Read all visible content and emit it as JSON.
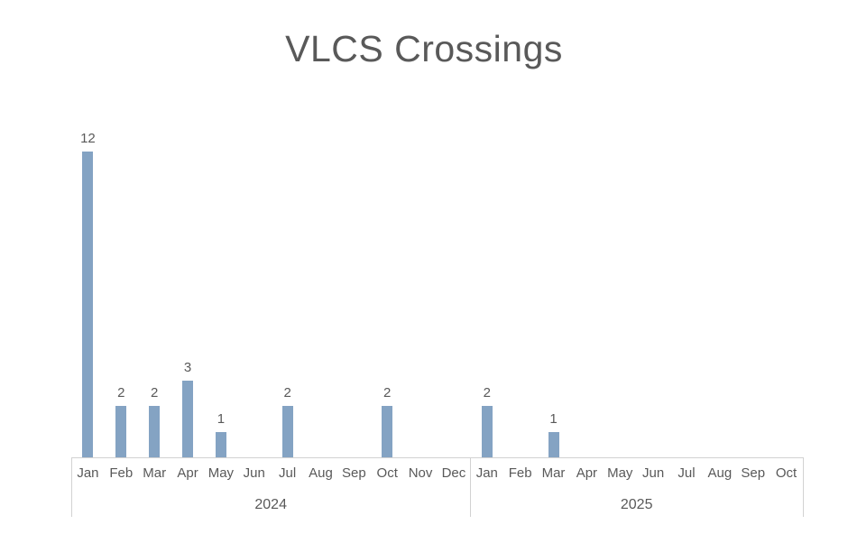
{
  "chart": {
    "background": "#FFFFFF"
  },
  "chart_data": {
    "type": "bar",
    "title": "VLCS Crossings",
    "xlabel": "",
    "ylabel": "",
    "ylim": [
      0,
      12
    ],
    "grid": "off",
    "legend": "none",
    "data_labels": true,
    "data_labels_note": "value shown above bar only when value > 0",
    "colors": {
      "bar": "#84A3C3",
      "text": "#595959",
      "axis_line": "#D2D2D2"
    },
    "groups": [
      {
        "year": "2024",
        "months": [
          "Jan",
          "Feb",
          "Mar",
          "Apr",
          "May",
          "Jun",
          "Jul",
          "Aug",
          "Sep",
          "Oct",
          "Nov",
          "Dec"
        ],
        "values": [
          12,
          2,
          2,
          3,
          1,
          0,
          2,
          0,
          0,
          2,
          0,
          0
        ]
      },
      {
        "year": "2025",
        "months": [
          "Jan",
          "Feb",
          "Mar",
          "Apr",
          "May",
          "Jun",
          "Jul",
          "Aug",
          "Sep",
          "Oct"
        ],
        "values": [
          2,
          0,
          1,
          0,
          0,
          0,
          0,
          0,
          0,
          0
        ]
      }
    ]
  }
}
